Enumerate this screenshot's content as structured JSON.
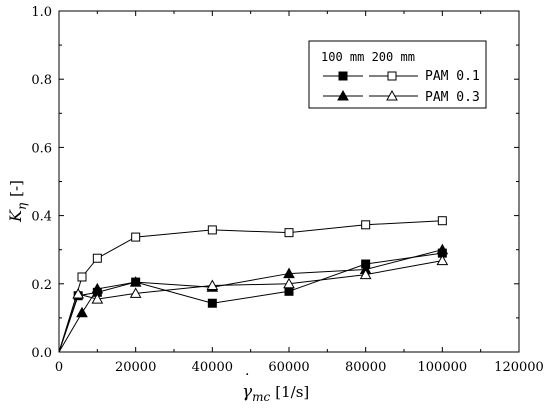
{
  "chart_data": {
    "type": "line",
    "title": "",
    "xlabel": {
      "main": "γ",
      "sub": "mc",
      "unit": "[1/s]"
    },
    "ylabel": {
      "main": "K",
      "sub": "η",
      "unit": "[-]"
    },
    "xlim": [
      0,
      120000
    ],
    "ylim": [
      0.0,
      1.0
    ],
    "x_ticks": [
      0,
      20000,
      40000,
      60000,
      80000,
      100000,
      120000
    ],
    "y_ticks": [
      0.0,
      0.2,
      0.4,
      0.6,
      0.8,
      1.0
    ],
    "x_tick_labels": [
      "0",
      "20000",
      "40000",
      "60000",
      "80000",
      "100000",
      "120000"
    ],
    "y_tick_labels": [
      "0.0",
      "0.2",
      "0.4",
      "0.6",
      "0.8",
      "1.0"
    ],
    "grid": false,
    "legend": {
      "placement": "top-right",
      "header": "100 mm 200 mm",
      "rows": [
        "PAM 0.1",
        "PAM 0.3"
      ]
    },
    "series": [
      {
        "marker": "square-filled",
        "x": [
          0,
          5000,
          10000,
          20000,
          40000,
          60000,
          80000,
          100000
        ],
        "values": [
          0.0,
          0.165,
          0.175,
          0.205,
          0.143,
          0.178,
          0.258,
          0.29
        ]
      },
      {
        "marker": "square-open",
        "x": [
          0,
          6000,
          10000,
          20000,
          40000,
          60000,
          80000,
          100000
        ],
        "values": [
          0.0,
          0.22,
          0.275,
          0.337,
          0.358,
          0.35,
          0.373,
          0.385
        ]
      },
      {
        "marker": "triangle-filled",
        "x": [
          0,
          6000,
          10000,
          20000,
          40000,
          60000,
          80000,
          100000
        ],
        "values": [
          0.0,
          0.115,
          0.185,
          0.205,
          0.19,
          0.23,
          0.242,
          0.3
        ]
      },
      {
        "marker": "triangle-open",
        "x": [
          0,
          5000,
          10000,
          20000,
          40000,
          60000,
          80000,
          100000
        ],
        "values": [
          0.0,
          0.17,
          0.155,
          0.172,
          0.195,
          0.2,
          0.227,
          0.268
        ]
      }
    ]
  }
}
